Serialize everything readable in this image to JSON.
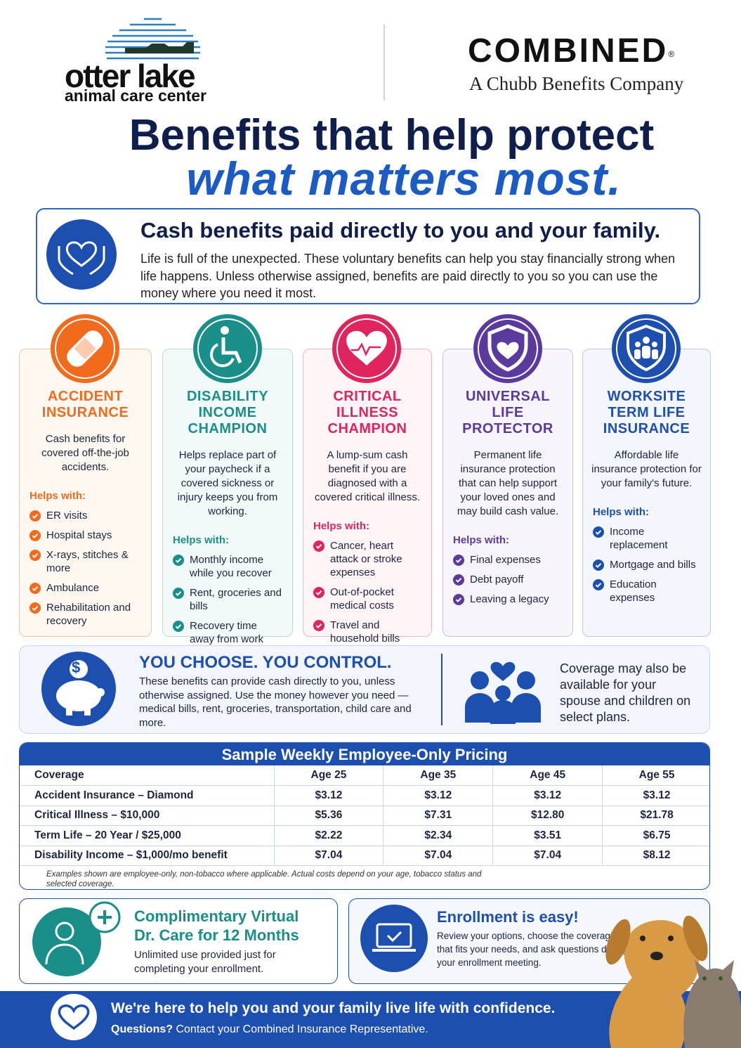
{
  "header": {
    "logo_name": "otter lake",
    "logo_sub": "animal care center",
    "brand": "COMBINED",
    "brand_mark": "®",
    "brand_tagline": "A Chubb Benefits Company"
  },
  "title": {
    "line1": "Benefits that help protect",
    "line2": "what matters most."
  },
  "intro": {
    "heading": "Cash benefits paid directly to you and your family.",
    "body": "Life is full of the unexpected. These voluntary benefits can help you stay financially strong when life happens. Unless otherwise assigned, benefits are paid directly to you so you can use the money where you need it most."
  },
  "cards": [
    {
      "title": "ACCIDENT INSURANCE",
      "description": "Cash benefits for covered off-the-job accidents.",
      "helps_label": "Helps with:",
      "items": [
        "ER visits",
        "Hospital stays",
        "X-rays, stitches & more",
        "Ambulance",
        "Rehabilitation and recovery"
      ]
    },
    {
      "title": "DISABILITY INCOME CHAMPION",
      "description": "Helps replace part of your paycheck if a covered sickness or injury keeps you from working.",
      "helps_label": "Helps with:",
      "items": [
        "Monthly income while you recover",
        "Rent, groceries and bills",
        "Recovery time away from work"
      ]
    },
    {
      "title": "CRITICAL ILLNESS CHAMPION",
      "description": "A lump-sum cash benefit if you are diagnosed with a covered critical illness.",
      "helps_label": "Helps with:",
      "items": [
        "Cancer, heart attack or stroke expenses",
        "Out-of-pocket medical costs",
        "Travel and household bills"
      ]
    },
    {
      "title": "UNIVERSAL LIFE PROTECTOR",
      "description": "Permanent life insurance protection that can help support your loved ones and may build cash value.",
      "helps_label": "Helps with:",
      "items": [
        "Final expenses",
        "Debt payoff",
        "Leaving a legacy"
      ]
    },
    {
      "title": "WORKSITE TERM LIFE INSURANCE",
      "description": "Affordable life insurance protection for your family's future.",
      "helps_label": "Helps with:",
      "items": [
        "Income replacement",
        "Mortgage and bills",
        "Education expenses"
      ]
    }
  ],
  "choose": {
    "icon_symbol": "$",
    "heading": "YOU CHOOSE. YOU CONTROL.",
    "body": "These benefits can provide cash directly to you, unless otherwise assigned. Use the money however you need — medical bills, rent, groceries, transportation, child care and more.",
    "family_note": "Coverage may also be available for your spouse and children on select plans."
  },
  "pricing": {
    "title": "Sample Weekly Employee-Only Pricing",
    "columns": [
      "Coverage",
      "Age 25",
      "Age 35",
      "Age 45",
      "Age 55"
    ],
    "rows": [
      [
        "Accident Insurance – Diamond",
        "$3.12",
        "$3.12",
        "$3.12",
        "$3.12"
      ],
      [
        "Critical Illness – $10,000",
        "$5.36",
        "$7.31",
        "$12.80",
        "$21.78"
      ],
      [
        "Term Life – 20 Year / $25,000",
        "$2.22",
        "$2.34",
        "$3.51",
        "$6.75"
      ],
      [
        "Disability Income – $1,000/mo benefit",
        "$7.04",
        "$7.04",
        "$7.04",
        "$8.12"
      ]
    ],
    "note": "Examples shown are employee-only, non-tobacco where applicable. Actual costs depend on your age, tobacco status and selected coverage."
  },
  "telehealth": {
    "heading": "Complimentary Virtual Dr. Care for 12 Months",
    "body": "Unlimited use provided just for completing your enrollment."
  },
  "enrollment": {
    "heading": "Enrollment is easy!",
    "body": "Review your options, choose the coverage that fits your needs, and ask questions during your enrollment meeting."
  },
  "footer": {
    "tagline": "We're here to help you and your family live life with confidence.",
    "questions_label": "Questions?",
    "questions_text": "Contact your Combined Insurance Representative."
  }
}
